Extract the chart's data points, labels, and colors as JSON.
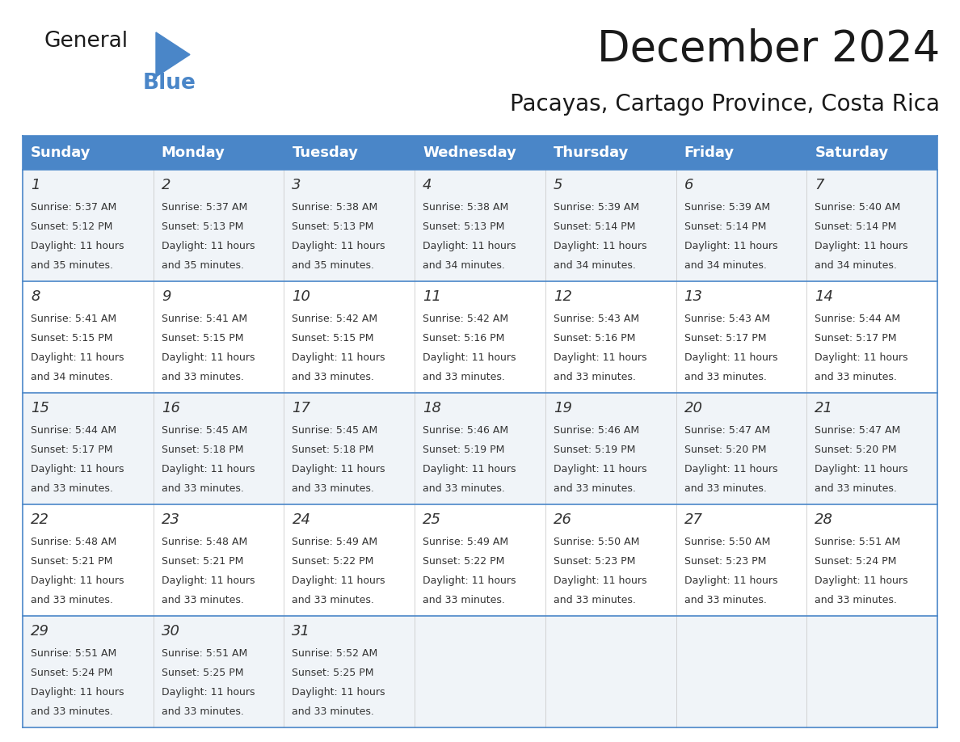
{
  "title": "December 2024",
  "subtitle": "Pacayas, Cartago Province, Costa Rica",
  "header_color": "#4a86c8",
  "header_text_color": "#ffffff",
  "cell_bg_even": "#f0f4f8",
  "cell_bg_odd": "#ffffff",
  "border_color": "#4a86c8",
  "text_color": "#333333",
  "day_headers": [
    "Sunday",
    "Monday",
    "Tuesday",
    "Wednesday",
    "Thursday",
    "Friday",
    "Saturday"
  ],
  "title_fontsize": 38,
  "subtitle_fontsize": 20,
  "header_fontsize": 13,
  "day_num_fontsize": 13,
  "cell_fontsize": 9,
  "weeks": [
    [
      {
        "day": 1,
        "sunrise": "5:37 AM",
        "sunset": "5:12 PM",
        "daylight_line1": "11 hours",
        "daylight_line2": "and 35 minutes."
      },
      {
        "day": 2,
        "sunrise": "5:37 AM",
        "sunset": "5:13 PM",
        "daylight_line1": "11 hours",
        "daylight_line2": "and 35 minutes."
      },
      {
        "day": 3,
        "sunrise": "5:38 AM",
        "sunset": "5:13 PM",
        "daylight_line1": "11 hours",
        "daylight_line2": "and 35 minutes."
      },
      {
        "day": 4,
        "sunrise": "5:38 AM",
        "sunset": "5:13 PM",
        "daylight_line1": "11 hours",
        "daylight_line2": "and 34 minutes."
      },
      {
        "day": 5,
        "sunrise": "5:39 AM",
        "sunset": "5:14 PM",
        "daylight_line1": "11 hours",
        "daylight_line2": "and 34 minutes."
      },
      {
        "day": 6,
        "sunrise": "5:39 AM",
        "sunset": "5:14 PM",
        "daylight_line1": "11 hours",
        "daylight_line2": "and 34 minutes."
      },
      {
        "day": 7,
        "sunrise": "5:40 AM",
        "sunset": "5:14 PM",
        "daylight_line1": "11 hours",
        "daylight_line2": "and 34 minutes."
      }
    ],
    [
      {
        "day": 8,
        "sunrise": "5:41 AM",
        "sunset": "5:15 PM",
        "daylight_line1": "11 hours",
        "daylight_line2": "and 34 minutes."
      },
      {
        "day": 9,
        "sunrise": "5:41 AM",
        "sunset": "5:15 PM",
        "daylight_line1": "11 hours",
        "daylight_line2": "and 33 minutes."
      },
      {
        "day": 10,
        "sunrise": "5:42 AM",
        "sunset": "5:15 PM",
        "daylight_line1": "11 hours",
        "daylight_line2": "and 33 minutes."
      },
      {
        "day": 11,
        "sunrise": "5:42 AM",
        "sunset": "5:16 PM",
        "daylight_line1": "11 hours",
        "daylight_line2": "and 33 minutes."
      },
      {
        "day": 12,
        "sunrise": "5:43 AM",
        "sunset": "5:16 PM",
        "daylight_line1": "11 hours",
        "daylight_line2": "and 33 minutes."
      },
      {
        "day": 13,
        "sunrise": "5:43 AM",
        "sunset": "5:17 PM",
        "daylight_line1": "11 hours",
        "daylight_line2": "and 33 minutes."
      },
      {
        "day": 14,
        "sunrise": "5:44 AM",
        "sunset": "5:17 PM",
        "daylight_line1": "11 hours",
        "daylight_line2": "and 33 minutes."
      }
    ],
    [
      {
        "day": 15,
        "sunrise": "5:44 AM",
        "sunset": "5:17 PM",
        "daylight_line1": "11 hours",
        "daylight_line2": "and 33 minutes."
      },
      {
        "day": 16,
        "sunrise": "5:45 AM",
        "sunset": "5:18 PM",
        "daylight_line1": "11 hours",
        "daylight_line2": "and 33 minutes."
      },
      {
        "day": 17,
        "sunrise": "5:45 AM",
        "sunset": "5:18 PM",
        "daylight_line1": "11 hours",
        "daylight_line2": "and 33 minutes."
      },
      {
        "day": 18,
        "sunrise": "5:46 AM",
        "sunset": "5:19 PM",
        "daylight_line1": "11 hours",
        "daylight_line2": "and 33 minutes."
      },
      {
        "day": 19,
        "sunrise": "5:46 AM",
        "sunset": "5:19 PM",
        "daylight_line1": "11 hours",
        "daylight_line2": "and 33 minutes."
      },
      {
        "day": 20,
        "sunrise": "5:47 AM",
        "sunset": "5:20 PM",
        "daylight_line1": "11 hours",
        "daylight_line2": "and 33 minutes."
      },
      {
        "day": 21,
        "sunrise": "5:47 AM",
        "sunset": "5:20 PM",
        "daylight_line1": "11 hours",
        "daylight_line2": "and 33 minutes."
      }
    ],
    [
      {
        "day": 22,
        "sunrise": "5:48 AM",
        "sunset": "5:21 PM",
        "daylight_line1": "11 hours",
        "daylight_line2": "and 33 minutes."
      },
      {
        "day": 23,
        "sunrise": "5:48 AM",
        "sunset": "5:21 PM",
        "daylight_line1": "11 hours",
        "daylight_line2": "and 33 minutes."
      },
      {
        "day": 24,
        "sunrise": "5:49 AM",
        "sunset": "5:22 PM",
        "daylight_line1": "11 hours",
        "daylight_line2": "and 33 minutes."
      },
      {
        "day": 25,
        "sunrise": "5:49 AM",
        "sunset": "5:22 PM",
        "daylight_line1": "11 hours",
        "daylight_line2": "and 33 minutes."
      },
      {
        "day": 26,
        "sunrise": "5:50 AM",
        "sunset": "5:23 PM",
        "daylight_line1": "11 hours",
        "daylight_line2": "and 33 minutes."
      },
      {
        "day": 27,
        "sunrise": "5:50 AM",
        "sunset": "5:23 PM",
        "daylight_line1": "11 hours",
        "daylight_line2": "and 33 minutes."
      },
      {
        "day": 28,
        "sunrise": "5:51 AM",
        "sunset": "5:24 PM",
        "daylight_line1": "11 hours",
        "daylight_line2": "and 33 minutes."
      }
    ],
    [
      {
        "day": 29,
        "sunrise": "5:51 AM",
        "sunset": "5:24 PM",
        "daylight_line1": "11 hours",
        "daylight_line2": "and 33 minutes."
      },
      {
        "day": 30,
        "sunrise": "5:51 AM",
        "sunset": "5:25 PM",
        "daylight_line1": "11 hours",
        "daylight_line2": "and 33 minutes."
      },
      {
        "day": 31,
        "sunrise": "5:52 AM",
        "sunset": "5:25 PM",
        "daylight_line1": "11 hours",
        "daylight_line2": "and 33 minutes."
      },
      null,
      null,
      null,
      null
    ]
  ]
}
